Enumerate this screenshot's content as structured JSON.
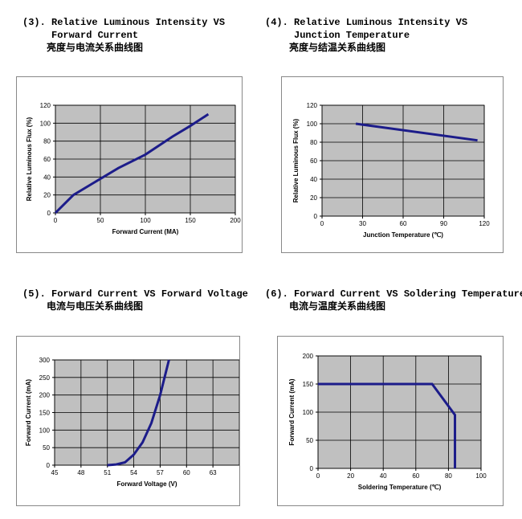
{
  "chart_data": [
    {
      "type": "line",
      "title": [
        "(3). Relative Luminous Intensity VS",
        "Forward Current"
      ],
      "subtitle": "亮度与电流关系曲线图",
      "xlabel": "Forward Current (MA)",
      "ylabel": "Relative Luminous Flux (%)",
      "x": [
        0,
        20,
        40,
        70,
        100,
        130,
        150,
        170
      ],
      "values": [
        0,
        20,
        32,
        50,
        65,
        85,
        97,
        110
      ],
      "color": "#1c1c8a",
      "xlim": [
        0,
        200
      ],
      "xticks": [
        0,
        50,
        100,
        150,
        200
      ],
      "ylim": [
        0,
        120
      ],
      "yticks": [
        0,
        20,
        40,
        60,
        80,
        100,
        120
      ],
      "grid": true
    },
    {
      "type": "line",
      "title": [
        "(4). Relative Luminous Intensity VS",
        "Junction Temperature"
      ],
      "subtitle": "亮度与结温关系曲线图",
      "xlabel": "Junction Temperature (℃)",
      "ylabel": "Relative Luminous Flux (%)",
      "x": [
        25,
        115
      ],
      "values": [
        100,
        82
      ],
      "color": "#1c1c8a",
      "xlim": [
        0,
        120
      ],
      "xticks": [
        0,
        30,
        60,
        90,
        120
      ],
      "ylim": [
        0,
        120
      ],
      "yticks": [
        0,
        20,
        40,
        60,
        80,
        100,
        120
      ],
      "grid": true
    },
    {
      "type": "line",
      "title": [
        "(5). Forward Current VS Forward Voltage"
      ],
      "subtitle": "电流与电压关系曲线图",
      "xlabel": "Forward Voltage (V)",
      "ylabel": "Forward Current (mA)",
      "x": [
        51,
        52,
        53,
        54,
        55,
        56,
        57,
        58
      ],
      "values": [
        0,
        2,
        8,
        30,
        65,
        120,
        200,
        300
      ],
      "color": "#1c1c8a",
      "xlim": [
        45,
        66
      ],
      "xticks": [
        45,
        48,
        51,
        54,
        57,
        60,
        63
      ],
      "ylim": [
        0,
        300
      ],
      "yticks": [
        0,
        50,
        100,
        150,
        200,
        250,
        300
      ],
      "grid": true
    },
    {
      "type": "line",
      "title": [
        "(6). Forward Current VS Soldering Temperature"
      ],
      "subtitle": "电流与温度关系曲线图",
      "xlabel": "Soldering Temperature (℃)",
      "ylabel": "Forward Current (mA)",
      "x": [
        0,
        70,
        84,
        84
      ],
      "values": [
        150,
        150,
        95,
        0
      ],
      "color": "#1c1c8a",
      "xlim": [
        0,
        100
      ],
      "xticks": [
        0,
        20,
        40,
        60,
        80,
        100
      ],
      "ylim": [
        0,
        200
      ],
      "yticks": [
        0,
        50,
        100,
        150,
        200
      ],
      "grid": true
    }
  ]
}
